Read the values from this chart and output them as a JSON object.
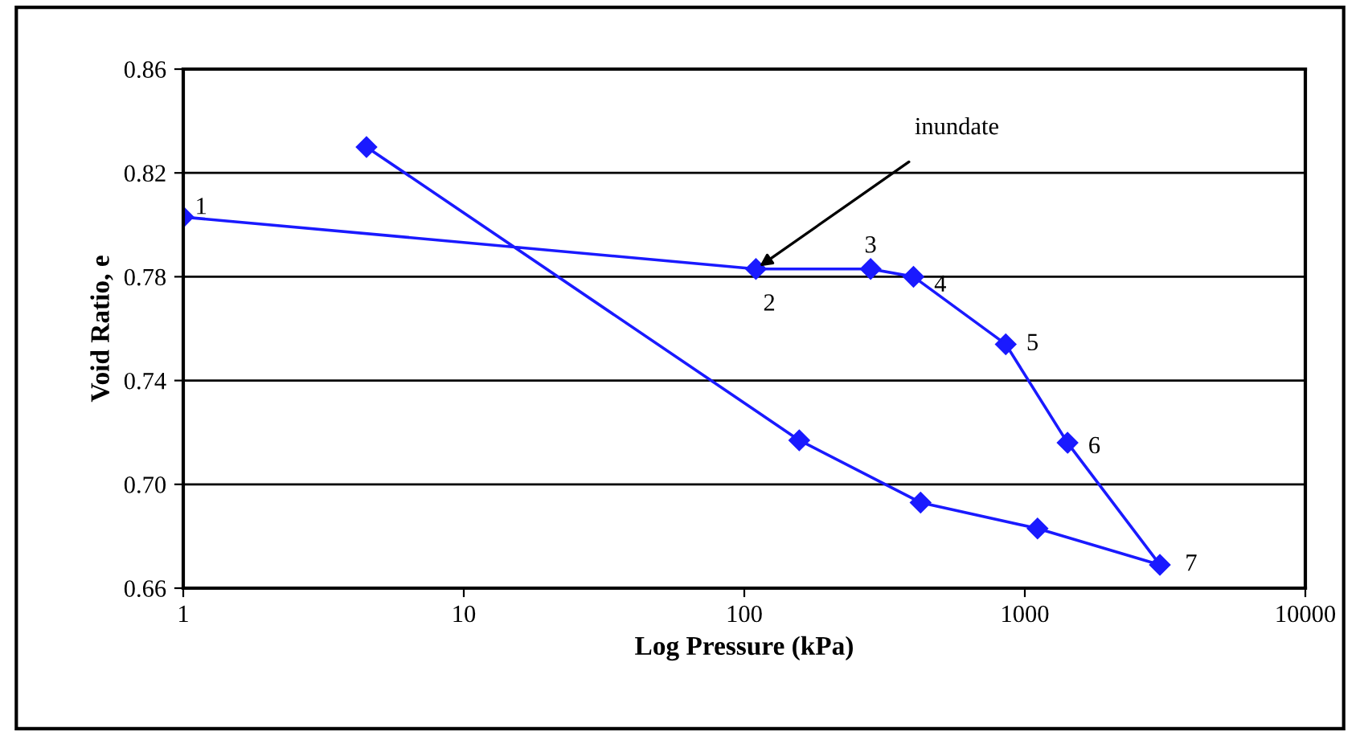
{
  "chart_data": {
    "type": "line",
    "xlabel": "Log Pressure (kPa)",
    "ylabel": "Void Ratio, e",
    "log": "x",
    "xlim": [
      1,
      10000
    ],
    "xticks": [
      1,
      10,
      100,
      1000,
      10000
    ],
    "ylim": [
      0.66,
      0.86
    ],
    "yticks": [
      {
        "value": 0.66,
        "label": "0.66"
      },
      {
        "value": 0.7,
        "label": "0.70"
      },
      {
        "value": 0.74,
        "label": "0.74"
      },
      {
        "value": 0.78,
        "label": "0.78"
      },
      {
        "value": 0.82,
        "label": "0.82"
      },
      {
        "value": 0.86,
        "label": "0.86"
      }
    ],
    "grid": "y",
    "marker": "diamond",
    "line_style": "solid",
    "legend": false,
    "series": [
      {
        "color": "#1a1aff",
        "x": [
          1,
          110,
          282,
          401,
          855,
          1420,
          3030,
          1110,
          425,
          157,
          4.5
        ],
        "values": [
          0.803,
          0.783,
          0.783,
          0.78,
          0.754,
          0.716,
          0.669,
          0.683,
          0.693,
          0.717,
          0.83
        ]
      }
    ],
    "annotations": [
      {
        "text": "1",
        "x": 1,
        "y": 0.803
      },
      {
        "text": "2",
        "x": 110,
        "y": 0.783
      },
      {
        "text": "3",
        "x": 282,
        "y": 0.783
      },
      {
        "text": "4",
        "x": 401,
        "y": 0.78
      },
      {
        "text": "5",
        "x": 855,
        "y": 0.754
      },
      {
        "text": "6",
        "x": 1420,
        "y": 0.716
      },
      {
        "text": "7",
        "x": 3030,
        "y": 0.669
      },
      {
        "text": "inundate",
        "x": 110,
        "y": 0.783
      }
    ]
  }
}
